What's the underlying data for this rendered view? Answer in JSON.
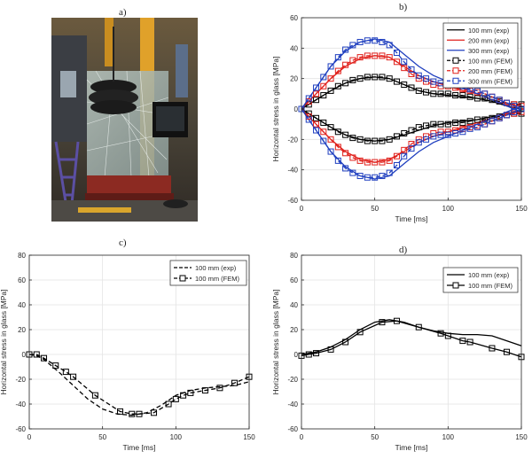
{
  "panels": {
    "a": "a)",
    "b": "b)",
    "c": "c)",
    "d": "d)"
  },
  "photo": {
    "description_icon": "photo-icon"
  },
  "chart_data": [
    {
      "id": "b",
      "type": "line",
      "title": "",
      "xlabel": "Time [ms]",
      "ylabel": "Horizontal stress in glass [MPa]",
      "xlim": [
        0,
        150
      ],
      "ylim": [
        -60,
        60
      ],
      "xticks": [
        0,
        50,
        100,
        150
      ],
      "yticks": [
        -60,
        -40,
        -20,
        0,
        20,
        40,
        60
      ],
      "grid": true,
      "legend_position": "top-right",
      "series": [
        {
          "name": "100 mm (exp)",
          "color": "#000000",
          "style": "solid",
          "marker": "none",
          "x": [
            0,
            10,
            20,
            30,
            40,
            50,
            60,
            70,
            80,
            90,
            100,
            110,
            120,
            130,
            140,
            150
          ],
          "y": [
            0,
            6,
            12,
            17,
            20,
            21,
            20,
            16,
            12,
            10,
            9,
            8,
            7,
            5,
            2,
            0
          ]
        },
        {
          "name": "",
          "color": "#000000",
          "style": "solid",
          "marker": "none",
          "x": [
            0,
            10,
            20,
            30,
            40,
            50,
            60,
            70,
            80,
            90,
            100,
            110,
            120,
            130,
            140,
            150
          ],
          "y": [
            0,
            -6,
            -12,
            -17,
            -20,
            -21,
            -20,
            -17,
            -14,
            -11,
            -9,
            -8,
            -7,
            -5,
            -3,
            -1
          ]
        },
        {
          "name": "200 mm (exp)",
          "color": "#e0201b",
          "style": "solid",
          "marker": "none",
          "x": [
            0,
            10,
            20,
            30,
            40,
            50,
            60,
            70,
            80,
            90,
            100,
            110,
            120,
            130,
            140,
            150
          ],
          "y": [
            0,
            10,
            20,
            28,
            33,
            35,
            34,
            28,
            22,
            18,
            15,
            12,
            10,
            6,
            3,
            2
          ]
        },
        {
          "name": "",
          "color": "#e0201b",
          "style": "solid",
          "marker": "none",
          "x": [
            0,
            10,
            20,
            30,
            40,
            50,
            60,
            70,
            80,
            90,
            100,
            110,
            120,
            130,
            140,
            150
          ],
          "y": [
            0,
            -10,
            -20,
            -28,
            -33,
            -35,
            -33,
            -28,
            -22,
            -18,
            -15,
            -12,
            -9,
            -6,
            -3,
            -2
          ]
        },
        {
          "name": "300 mm (exp)",
          "color": "#1f3fbf",
          "style": "solid",
          "marker": "none",
          "x": [
            0,
            10,
            20,
            30,
            40,
            50,
            60,
            70,
            80,
            90,
            100,
            110,
            120,
            130,
            140,
            150
          ],
          "y": [
            0,
            14,
            28,
            38,
            44,
            46,
            44,
            36,
            28,
            22,
            18,
            14,
            10,
            6,
            2,
            -2
          ]
        },
        {
          "name": "",
          "color": "#1f3fbf",
          "style": "solid",
          "marker": "none",
          "x": [
            0,
            10,
            20,
            30,
            40,
            50,
            60,
            70,
            80,
            90,
            100,
            110,
            120,
            130,
            140,
            150
          ],
          "y": [
            0,
            -14,
            -28,
            -38,
            -44,
            -46,
            -44,
            -36,
            -28,
            -22,
            -18,
            -14,
            -10,
            -6,
            -2,
            2
          ]
        },
        {
          "name": "100 mm (FEM)",
          "color": "#000000",
          "style": "dashed",
          "marker": "square",
          "x": [
            0,
            5,
            10,
            15,
            20,
            25,
            30,
            35,
            40,
            45,
            50,
            55,
            60,
            65,
            70,
            75,
            80,
            85,
            90,
            95,
            100,
            105,
            110,
            115,
            120,
            125,
            130,
            135,
            140,
            145,
            150
          ],
          "y": [
            0,
            3,
            6,
            9,
            12,
            15,
            17,
            19,
            20,
            21,
            21,
            21,
            20,
            18,
            16,
            14,
            12,
            11,
            10,
            10,
            10,
            9,
            9,
            8,
            7,
            7,
            6,
            5,
            4,
            3,
            3
          ]
        },
        {
          "name": "",
          "color": "#000000",
          "style": "dashed",
          "marker": "square",
          "x": [
            0,
            5,
            10,
            15,
            20,
            25,
            30,
            35,
            40,
            45,
            50,
            55,
            60,
            65,
            70,
            75,
            80,
            85,
            90,
            95,
            100,
            105,
            110,
            115,
            120,
            125,
            130,
            135,
            140,
            145,
            150
          ],
          "y": [
            0,
            -3,
            -6,
            -9,
            -12,
            -15,
            -17,
            -19,
            -20,
            -21,
            -21,
            -21,
            -20,
            -18,
            -16,
            -14,
            -12,
            -11,
            -10,
            -10,
            -10,
            -9,
            -9,
            -8,
            -7,
            -7,
            -6,
            -5,
            -4,
            -3,
            -3
          ]
        },
        {
          "name": "200 mm (FEM)",
          "color": "#e0201b",
          "style": "dashed",
          "marker": "square",
          "x": [
            0,
            5,
            10,
            15,
            20,
            25,
            30,
            35,
            40,
            45,
            50,
            55,
            60,
            65,
            70,
            75,
            80,
            85,
            90,
            95,
            100,
            105,
            110,
            115,
            120,
            125,
            130,
            135,
            140,
            145,
            150
          ],
          "y": [
            0,
            5,
            10,
            15,
            20,
            25,
            29,
            32,
            34,
            35,
            35,
            35,
            34,
            31,
            27,
            23,
            20,
            18,
            16,
            15,
            15,
            14,
            13,
            12,
            11,
            10,
            8,
            6,
            4,
            3,
            2
          ]
        },
        {
          "name": "",
          "color": "#e0201b",
          "style": "dashed",
          "marker": "square",
          "x": [
            0,
            5,
            10,
            15,
            20,
            25,
            30,
            35,
            40,
            45,
            50,
            55,
            60,
            65,
            70,
            75,
            80,
            85,
            90,
            95,
            100,
            105,
            110,
            115,
            120,
            125,
            130,
            135,
            140,
            145,
            150
          ],
          "y": [
            0,
            -5,
            -10,
            -15,
            -20,
            -25,
            -29,
            -32,
            -34,
            -35,
            -35,
            -35,
            -34,
            -31,
            -27,
            -23,
            -20,
            -18,
            -16,
            -15,
            -15,
            -14,
            -13,
            -12,
            -11,
            -10,
            -8,
            -6,
            -4,
            -3,
            -2
          ]
        },
        {
          "name": "300 mm (FEM)",
          "color": "#1f3fbf",
          "style": "dashed",
          "marker": "square",
          "x": [
            0,
            5,
            10,
            15,
            20,
            25,
            30,
            35,
            40,
            45,
            50,
            55,
            60,
            65,
            70,
            75,
            80,
            85,
            90,
            95,
            100,
            105,
            110,
            115,
            120,
            125,
            130,
            135,
            140,
            145,
            150
          ],
          "y": [
            0,
            7,
            14,
            21,
            28,
            34,
            39,
            42,
            44,
            45,
            45,
            44,
            42,
            37,
            31,
            26,
            22,
            20,
            18,
            17,
            17,
            16,
            15,
            13,
            12,
            10,
            8,
            6,
            4,
            2,
            0
          ]
        },
        {
          "name": "",
          "color": "#1f3fbf",
          "style": "dashed",
          "marker": "square",
          "x": [
            0,
            5,
            10,
            15,
            20,
            25,
            30,
            35,
            40,
            45,
            50,
            55,
            60,
            65,
            70,
            75,
            80,
            85,
            90,
            95,
            100,
            105,
            110,
            115,
            120,
            125,
            130,
            135,
            140,
            145,
            150
          ],
          "y": [
            0,
            -7,
            -14,
            -21,
            -28,
            -34,
            -39,
            -42,
            -44,
            -45,
            -45,
            -44,
            -42,
            -37,
            -31,
            -26,
            -22,
            -20,
            -18,
            -17,
            -17,
            -16,
            -15,
            -13,
            -12,
            -10,
            -8,
            -6,
            -4,
            -2,
            0
          ]
        }
      ]
    },
    {
      "id": "c",
      "type": "line",
      "title": "",
      "xlabel": "Time [ms]",
      "ylabel": "Horizontal stress in glass [MPa]",
      "xlim": [
        0,
        150
      ],
      "ylim": [
        -60,
        80
      ],
      "xticks": [
        0,
        50,
        100,
        150
      ],
      "yticks": [
        -60,
        -40,
        -20,
        0,
        20,
        40,
        60,
        80
      ],
      "grid": true,
      "legend_position": "top-right",
      "series": [
        {
          "name": "100 mm (exp)",
          "color": "#000000",
          "style": "dashed",
          "marker": "none",
          "x": [
            0,
            5,
            10,
            20,
            30,
            40,
            50,
            60,
            70,
            80,
            90,
            100,
            110,
            120,
            130,
            140,
            150
          ],
          "y": [
            0,
            -1,
            -4,
            -14,
            -25,
            -36,
            -44,
            -48,
            -49,
            -47,
            -41,
            -33,
            -29,
            -27,
            -26,
            -25,
            -22
          ]
        },
        {
          "name": "100 mm (FEM)",
          "color": "#000000",
          "style": "dashed",
          "marker": "square",
          "x": [
            0,
            5,
            10,
            18,
            25,
            30,
            45,
            62,
            70,
            75,
            85,
            95,
            100,
            105,
            110,
            120,
            130,
            140,
            150
          ],
          "y": [
            0,
            0,
            -3,
            -9,
            -14,
            -18,
            -33,
            -46,
            -48,
            -48,
            -47,
            -40,
            -36,
            -33,
            -31,
            -29,
            -27,
            -23,
            -18
          ]
        }
      ]
    },
    {
      "id": "d",
      "type": "line",
      "title": "",
      "xlabel": "Time [ms]",
      "ylabel": "Horizontal stress in glass [MPa]",
      "xlim": [
        0,
        150
      ],
      "ylim": [
        -60,
        80
      ],
      "xticks": [
        0,
        50,
        100,
        150
      ],
      "yticks": [
        -60,
        -40,
        -20,
        0,
        20,
        40,
        60,
        80
      ],
      "grid": true,
      "legend_position": "top-right",
      "series": [
        {
          "name": "100 mm (exp)",
          "color": "#000000",
          "style": "solid",
          "marker": "none",
          "x": [
            0,
            10,
            20,
            30,
            40,
            50,
            60,
            70,
            80,
            90,
            100,
            110,
            120,
            130,
            140,
            150
          ],
          "y": [
            0,
            2,
            6,
            12,
            20,
            26,
            28,
            26,
            22,
            19,
            17,
            16,
            16,
            15,
            11,
            7
          ]
        },
        {
          "name": "100 mm (FEM)",
          "color": "#000000",
          "style": "solid",
          "marker": "square",
          "x": [
            0,
            5,
            10,
            20,
            30,
            40,
            55,
            65,
            80,
            95,
            100,
            110,
            115,
            130,
            140,
            150
          ],
          "y": [
            -1,
            0,
            1,
            4,
            10,
            18,
            26,
            27,
            22,
            17,
            15,
            11,
            10,
            5,
            2,
            -2
          ]
        }
      ]
    }
  ]
}
